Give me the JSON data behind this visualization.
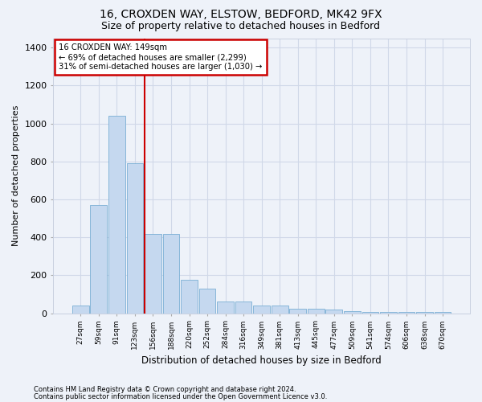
{
  "title1": "16, CROXDEN WAY, ELSTOW, BEDFORD, MK42 9FX",
  "title2": "Size of property relative to detached houses in Bedford",
  "xlabel": "Distribution of detached houses by size in Bedford",
  "ylabel": "Number of detached properties",
  "bin_labels": [
    "27sqm",
    "59sqm",
    "91sqm",
    "123sqm",
    "156sqm",
    "188sqm",
    "220sqm",
    "252sqm",
    "284sqm",
    "316sqm",
    "349sqm",
    "381sqm",
    "413sqm",
    "445sqm",
    "477sqm",
    "509sqm",
    "541sqm",
    "574sqm",
    "606sqm",
    "638sqm",
    "670sqm"
  ],
  "bar_values": [
    40,
    570,
    1040,
    790,
    420,
    420,
    175,
    130,
    60,
    60,
    40,
    40,
    25,
    25,
    18,
    10,
    8,
    5,
    5,
    5,
    5
  ],
  "bar_color": "#c5d8ef",
  "bar_edge_color": "#7aafd4",
  "vline_color": "#cc0000",
  "vline_x_index": 3.55,
  "annotation_line1": "16 CROXDEN WAY: 149sqm",
  "annotation_line2": "← 69% of detached houses are smaller (2,299)",
  "annotation_line3": "31% of semi-detached houses are larger (1,030) →",
  "annotation_box_facecolor": "#ffffff",
  "annotation_box_edgecolor": "#cc0000",
  "ylim": [
    0,
    1450
  ],
  "yticks": [
    0,
    200,
    400,
    600,
    800,
    1000,
    1200,
    1400
  ],
  "grid_color": "#d0d8e8",
  "bg_color": "#eef2f9",
  "footer1": "Contains HM Land Registry data © Crown copyright and database right 2024.",
  "footer2": "Contains public sector information licensed under the Open Government Licence v3.0."
}
